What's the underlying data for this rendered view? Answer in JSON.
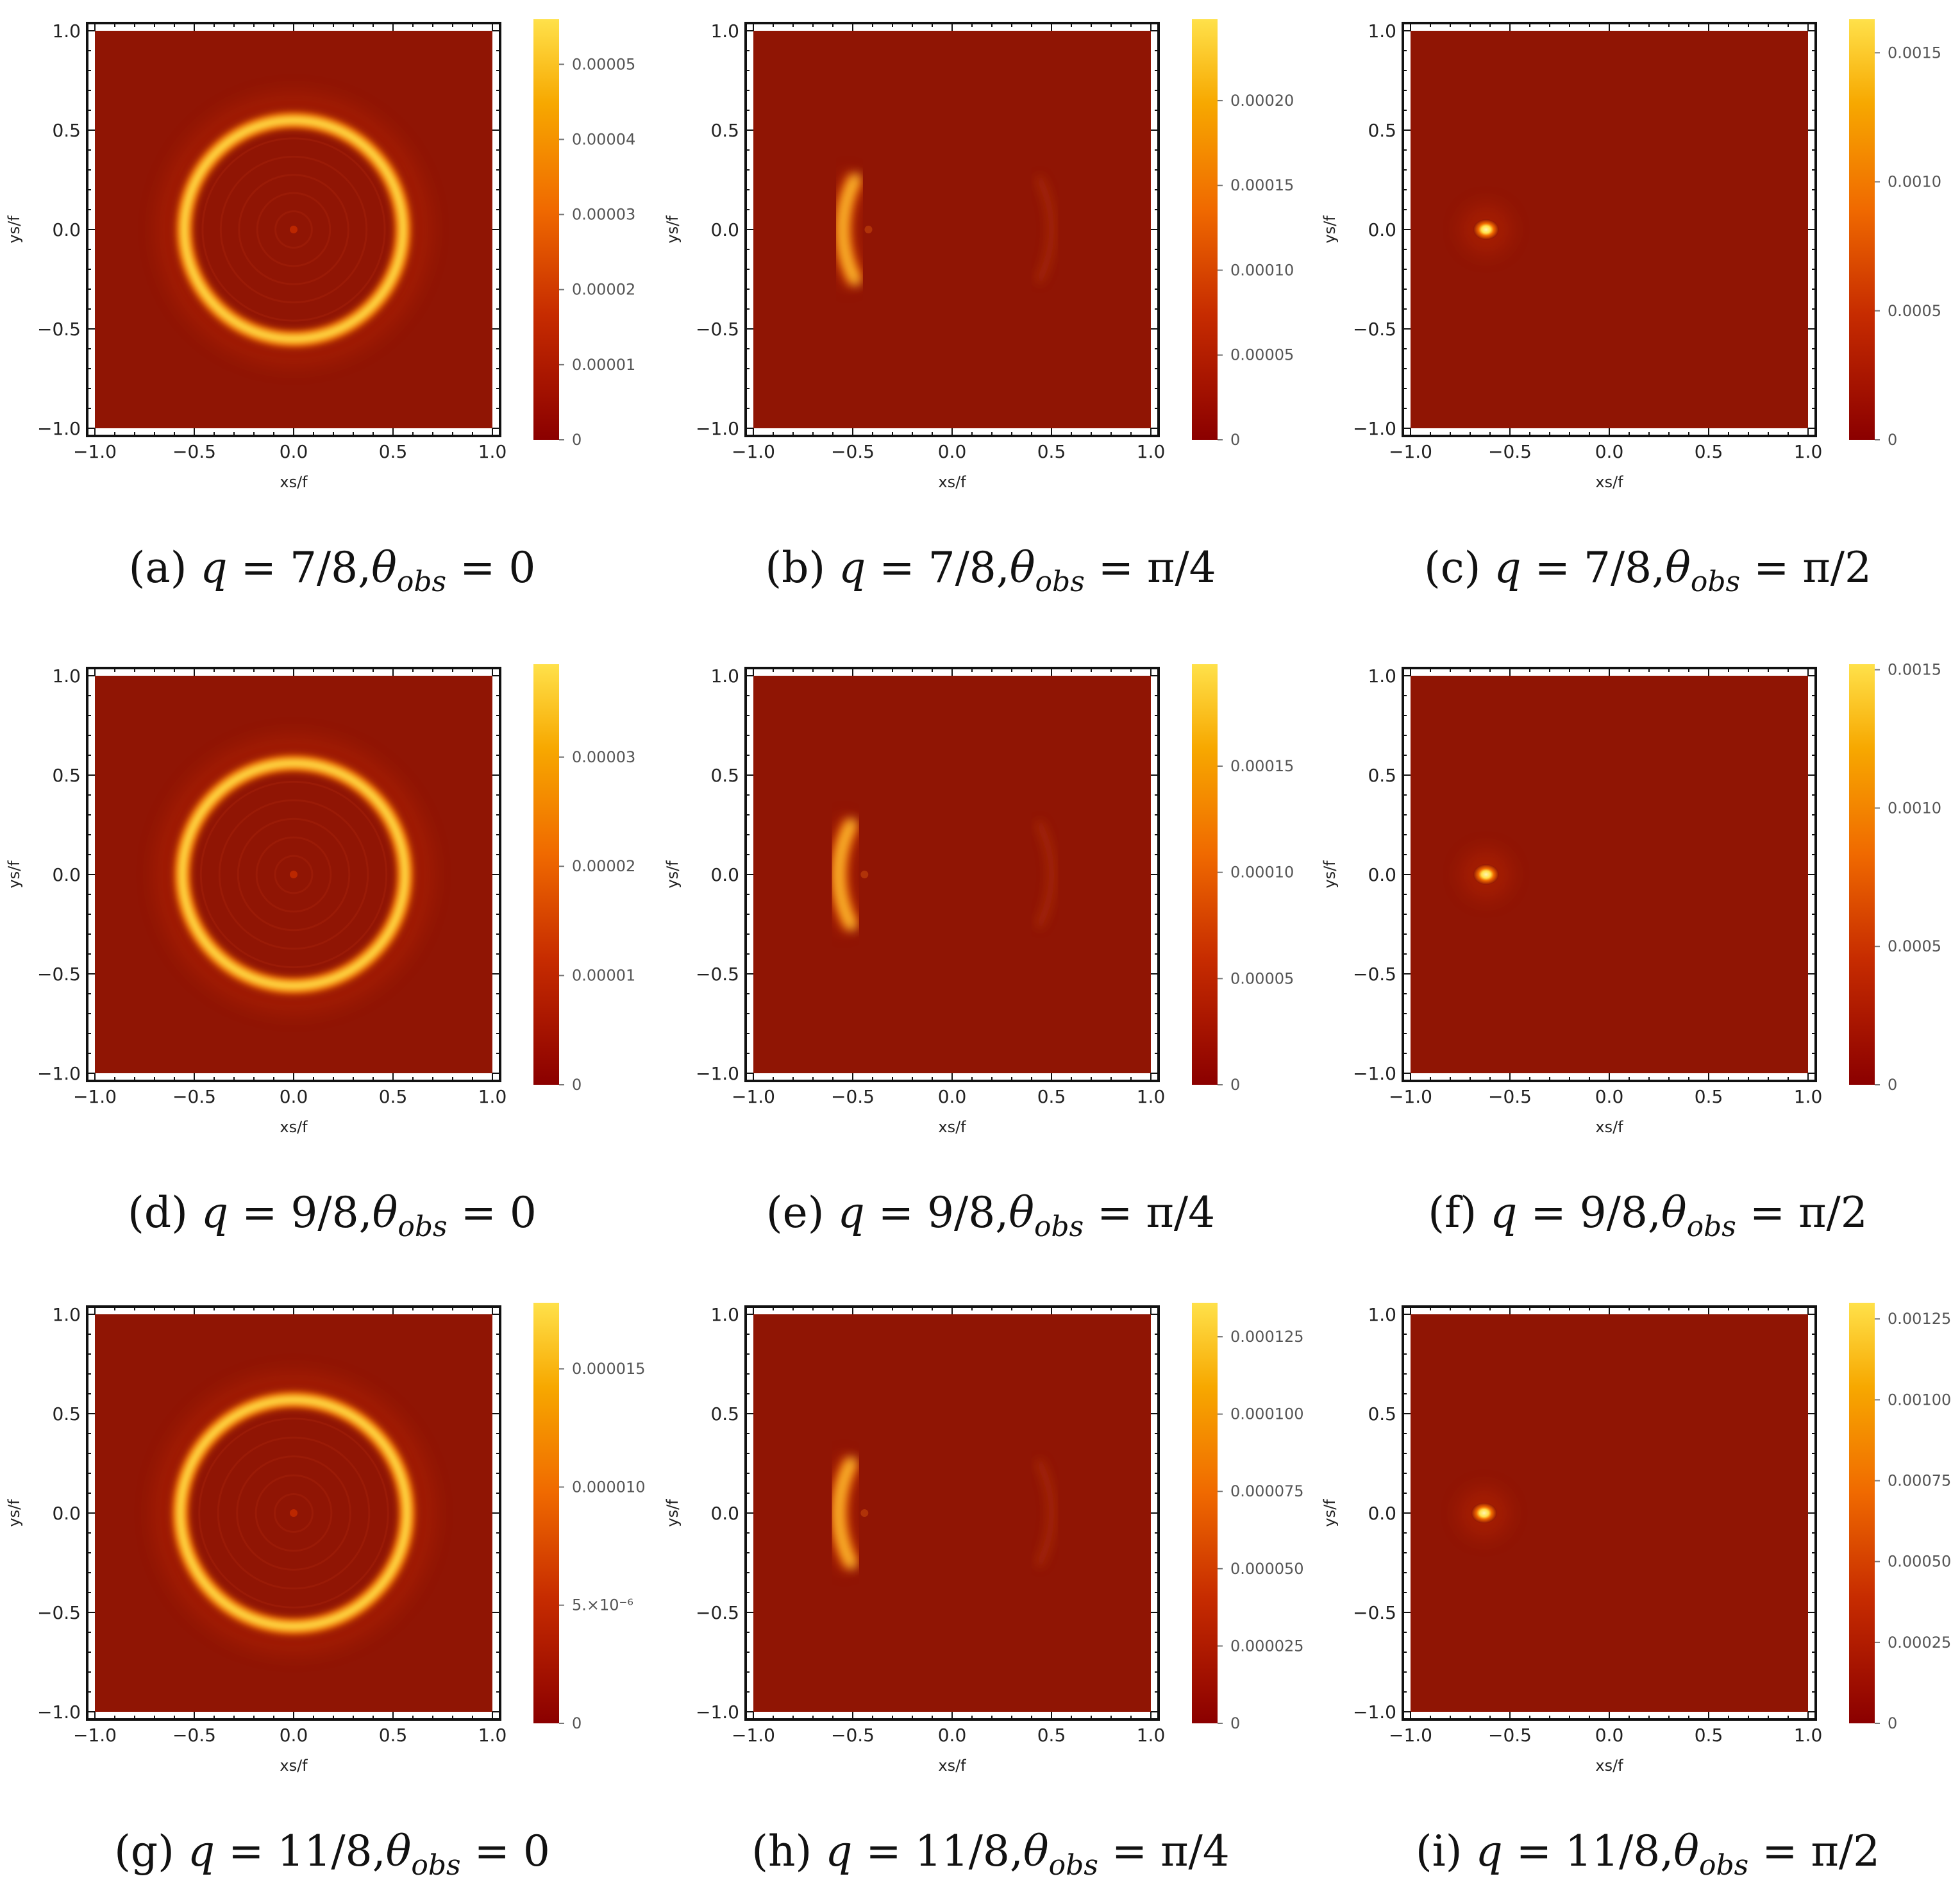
{
  "panel_labels": {
    "x_axis_label": "xs/f",
    "y_axis_label": "ys/f"
  },
  "colormap": {
    "low": "#8b0000",
    "mid_low": "#c72c00",
    "mid": "#f06a00",
    "mid_high": "#f7a800",
    "high": "#ffe14a",
    "background": "#901504"
  },
  "chart_data": [
    {
      "type": "heatmap",
      "id": "a",
      "caption": {
        "prefix": "(a)",
        "q": "7/8",
        "theta": "0"
      },
      "x_ticks": [
        "−1.0",
        "−0.5",
        "0.0",
        "0.5",
        "1.0"
      ],
      "y_ticks": [
        "−1.0",
        "−0.5",
        "0.0",
        "0.5",
        "1.0"
      ],
      "xlim": [
        -1,
        1
      ],
      "ylim": [
        -1,
        1
      ],
      "feature": {
        "kind": "ring",
        "radius": 0.55
      },
      "colorbar": {
        "max": 5.6e-05,
        "ticks": [
          {
            "v": 0,
            "label": "0"
          },
          {
            "v": 1e-05,
            "label": "0.00001"
          },
          {
            "v": 2e-05,
            "label": "0.00002"
          },
          {
            "v": 3e-05,
            "label": "0.00003"
          },
          {
            "v": 4e-05,
            "label": "0.00004"
          },
          {
            "v": 5e-05,
            "label": "0.00005"
          }
        ]
      }
    },
    {
      "type": "heatmap",
      "id": "b",
      "caption": {
        "prefix": "(b)",
        "q": "7/8",
        "theta": "π/4"
      },
      "x_ticks": [
        "−1.0",
        "−0.5",
        "0.0",
        "0.5",
        "1.0"
      ],
      "y_ticks": [
        "−1.0",
        "−0.5",
        "0.0",
        "0.5",
        "1.0"
      ],
      "xlim": [
        -1,
        1
      ],
      "ylim": [
        -1,
        1
      ],
      "feature": {
        "kind": "arc",
        "center_x": -0.55,
        "faint_x": 0.5
      },
      "colorbar": {
        "max": 0.000248,
        "ticks": [
          {
            "v": 0,
            "label": "0"
          },
          {
            "v": 5e-05,
            "label": "0.00005"
          },
          {
            "v": 0.0001,
            "label": "0.00010"
          },
          {
            "v": 0.00015,
            "label": "0.00015"
          },
          {
            "v": 0.0002,
            "label": "0.00020"
          }
        ]
      }
    },
    {
      "type": "heatmap",
      "id": "c",
      "caption": {
        "prefix": "(c)",
        "q": "7/8",
        "theta": "π/2"
      },
      "x_ticks": [
        "−1.0",
        "−0.5",
        "0.0",
        "0.5",
        "1.0"
      ],
      "y_ticks": [
        "−1.0",
        "−0.5",
        "0.0",
        "0.5",
        "1.0"
      ],
      "xlim": [
        -1,
        1
      ],
      "ylim": [
        -1,
        1
      ],
      "feature": {
        "kind": "spot",
        "center_x": -0.62,
        "center_y": 0.0
      },
      "colorbar": {
        "max": 0.00163,
        "ticks": [
          {
            "v": 0,
            "label": "0"
          },
          {
            "v": 0.0005,
            "label": "0.0005"
          },
          {
            "v": 0.001,
            "label": "0.0010"
          },
          {
            "v": 0.0015,
            "label": "0.0015"
          }
        ]
      }
    },
    {
      "type": "heatmap",
      "id": "d",
      "caption": {
        "prefix": "(d)",
        "q": "9/8",
        "theta": "0"
      },
      "x_ticks": [
        "−1.0",
        "−0.5",
        "0.0",
        "0.5",
        "1.0"
      ],
      "y_ticks": [
        "−1.0",
        "−0.5",
        "0.0",
        "0.5",
        "1.0"
      ],
      "xlim": [
        -1,
        1
      ],
      "ylim": [
        -1,
        1
      ],
      "feature": {
        "kind": "ring",
        "radius": 0.56
      },
      "colorbar": {
        "max": 3.85e-05,
        "ticks": [
          {
            "v": 0,
            "label": "0"
          },
          {
            "v": 1e-05,
            "label": "0.00001"
          },
          {
            "v": 2e-05,
            "label": "0.00002"
          },
          {
            "v": 3e-05,
            "label": "0.00003"
          }
        ]
      }
    },
    {
      "type": "heatmap",
      "id": "e",
      "caption": {
        "prefix": "(e)",
        "q": "9/8",
        "theta": "π/4"
      },
      "x_ticks": [
        "−1.0",
        "−0.5",
        "0.0",
        "0.5",
        "1.0"
      ],
      "y_ticks": [
        "−1.0",
        "−0.5",
        "0.0",
        "0.5",
        "1.0"
      ],
      "xlim": [
        -1,
        1
      ],
      "ylim": [
        -1,
        1
      ],
      "feature": {
        "kind": "arc",
        "center_x": -0.57,
        "faint_x": 0.5
      },
      "colorbar": {
        "max": 0.000198,
        "ticks": [
          {
            "v": 0,
            "label": "0"
          },
          {
            "v": 5e-05,
            "label": "0.00005"
          },
          {
            "v": 0.0001,
            "label": "0.00010"
          },
          {
            "v": 0.00015,
            "label": "0.00015"
          }
        ]
      }
    },
    {
      "type": "heatmap",
      "id": "f",
      "caption": {
        "prefix": "(f)",
        "q": "9/8",
        "theta": "π/2"
      },
      "x_ticks": [
        "−1.0",
        "−0.5",
        "0.0",
        "0.5",
        "1.0"
      ],
      "y_ticks": [
        "−1.0",
        "−0.5",
        "0.0",
        "0.5",
        "1.0"
      ],
      "xlim": [
        -1,
        1
      ],
      "ylim": [
        -1,
        1
      ],
      "feature": {
        "kind": "spot",
        "center_x": -0.62,
        "center_y": 0.0
      },
      "colorbar": {
        "max": 0.00152,
        "ticks": [
          {
            "v": 0,
            "label": "0"
          },
          {
            "v": 0.0005,
            "label": "0.0005"
          },
          {
            "v": 0.001,
            "label": "0.0010"
          },
          {
            "v": 0.0015,
            "label": "0.0015"
          }
        ]
      }
    },
    {
      "type": "heatmap",
      "id": "g",
      "caption": {
        "prefix": "(g)",
        "q": "11/8",
        "theta": "0"
      },
      "x_ticks": [
        "−1.0",
        "−0.5",
        "0.0",
        "0.5",
        "1.0"
      ],
      "y_ticks": [
        "−1.0",
        "−0.5",
        "0.0",
        "0.5",
        "1.0"
      ],
      "xlim": [
        -1,
        1
      ],
      "ylim": [
        -1,
        1
      ],
      "feature": {
        "kind": "ring",
        "radius": 0.57
      },
      "colorbar": {
        "max": 1.78e-05,
        "ticks": [
          {
            "v": 0,
            "label": "0"
          },
          {
            "v": 5e-06,
            "label": "5.×10⁻⁶"
          },
          {
            "v": 1e-05,
            "label": "0.000010"
          },
          {
            "v": 1.5e-05,
            "label": "0.000015"
          }
        ]
      }
    },
    {
      "type": "heatmap",
      "id": "h",
      "caption": {
        "prefix": "(h)",
        "q": "11/8",
        "theta": "π/4"
      },
      "x_ticks": [
        "−1.0",
        "−0.5",
        "0.0",
        "0.5",
        "1.0"
      ],
      "y_ticks": [
        "−1.0",
        "−0.5",
        "0.0",
        "0.5",
        "1.0"
      ],
      "xlim": [
        -1,
        1
      ],
      "ylim": [
        -1,
        1
      ],
      "feature": {
        "kind": "arc",
        "center_x": -0.57,
        "faint_x": 0.5
      },
      "colorbar": {
        "max": 0.000136,
        "ticks": [
          {
            "v": 0,
            "label": "0"
          },
          {
            "v": 2.5e-05,
            "label": "0.000025"
          },
          {
            "v": 5e-05,
            "label": "0.000050"
          },
          {
            "v": 7.5e-05,
            "label": "0.000075"
          },
          {
            "v": 0.0001,
            "label": "0.000100"
          },
          {
            "v": 0.000125,
            "label": "0.000125"
          }
        ]
      }
    },
    {
      "type": "heatmap",
      "id": "i",
      "caption": {
        "prefix": "(i)",
        "q": "11/8",
        "theta": "π/2"
      },
      "x_ticks": [
        "−1.0",
        "−0.5",
        "0.0",
        "0.5",
        "1.0"
      ],
      "y_ticks": [
        "−1.0",
        "−0.5",
        "0.0",
        "0.5",
        "1.0"
      ],
      "xlim": [
        -1,
        1
      ],
      "ylim": [
        -1,
        1
      ],
      "feature": {
        "kind": "spot",
        "center_x": -0.63,
        "center_y": 0.0
      },
      "colorbar": {
        "max": 0.0013,
        "ticks": [
          {
            "v": 0,
            "label": "0"
          },
          {
            "v": 0.00025,
            "label": "0.00025"
          },
          {
            "v": 0.0005,
            "label": "0.00050"
          },
          {
            "v": 0.00075,
            "label": "0.00075"
          },
          {
            "v": 0.001,
            "label": "0.00100"
          },
          {
            "v": 0.00125,
            "label": "0.00125"
          }
        ]
      }
    }
  ]
}
